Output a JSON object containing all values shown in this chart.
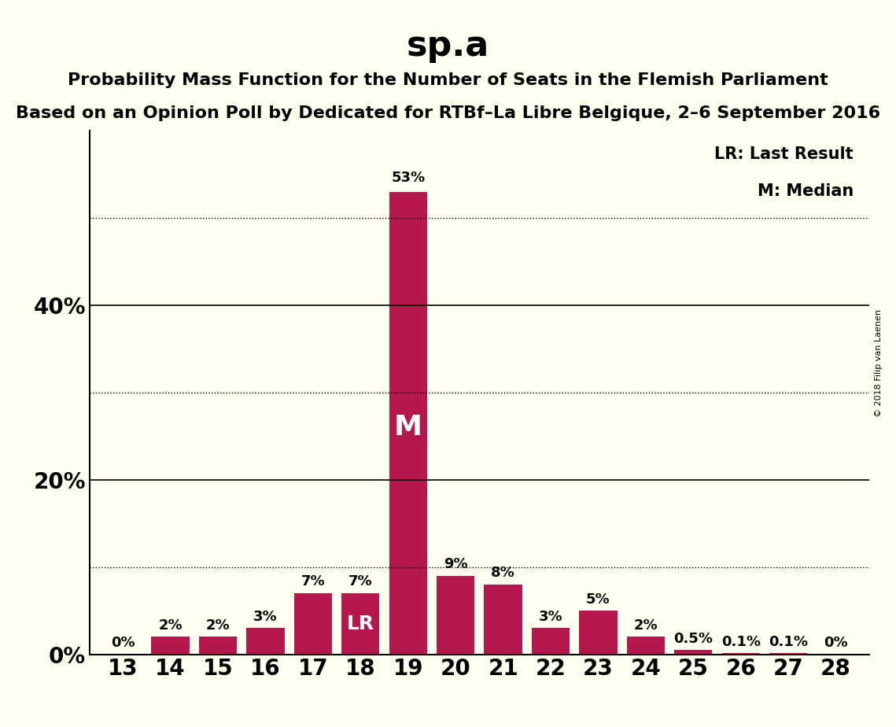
{
  "title": "sp.a",
  "subtitle1": "Probability Mass Function for the Number of Seats in the Flemish Parliament",
  "subtitle2": "Based on an Opinion Poll by Dedicated for RTBf–La Libre Belgique, 2–6 September 2016",
  "copyright": "© 2018 Filip van Laenen",
  "seats": [
    13,
    14,
    15,
    16,
    17,
    18,
    19,
    20,
    21,
    22,
    23,
    24,
    25,
    26,
    27,
    28
  ],
  "probabilities": [
    0.0,
    2.0,
    2.0,
    3.0,
    7.0,
    7.0,
    53.0,
    9.0,
    8.0,
    3.0,
    5.0,
    2.0,
    0.5,
    0.1,
    0.1,
    0.0
  ],
  "bar_color": "#B5184E",
  "background_color": "#FFFFF0",
  "lr_seat": 18,
  "median_seat": 19,
  "legend_lr": "LR: Last Result",
  "legend_m": "M: Median",
  "yticks": [
    0,
    10,
    20,
    30,
    40,
    50
  ],
  "ytick_labels": [
    "0%",
    "",
    "20%",
    "",
    "40%",
    ""
  ],
  "solid_lines": [
    0,
    20,
    40
  ],
  "dotted_lines": [
    10,
    30,
    50
  ],
  "ylim": [
    0,
    60
  ]
}
